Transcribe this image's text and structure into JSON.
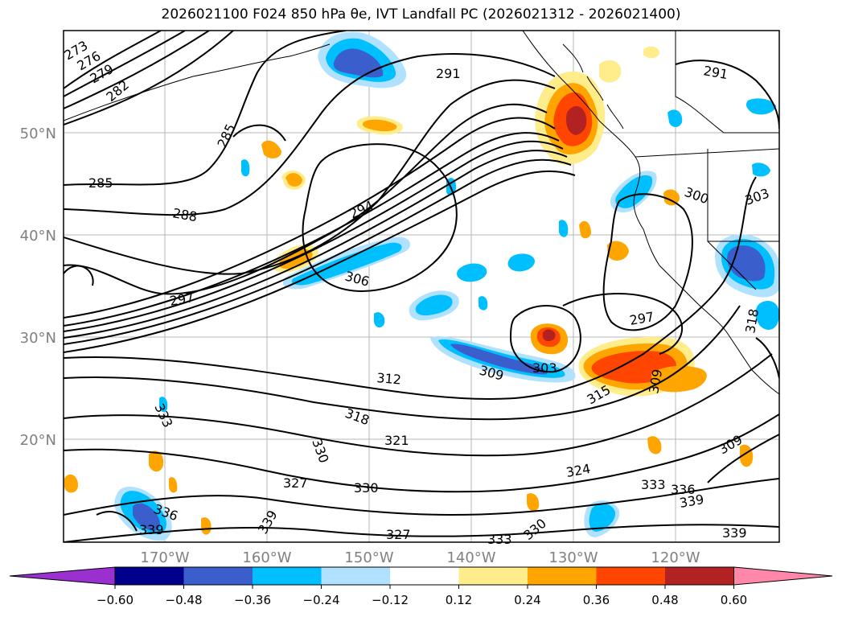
{
  "title": "2026021100 F024 850 hPa θe, IVT Landfall PC (2026021312 - 2026021400)",
  "map": {
    "lat_ticks": [
      "50°N",
      "40°N",
      "30°N",
      "20°N"
    ],
    "lon_ticks": [
      "170°W",
      "160°W",
      "150°W",
      "140°W",
      "130°W",
      "120°W"
    ]
  },
  "contour_labels": [
    {
      "text": "273"
    },
    {
      "text": "276"
    },
    {
      "text": "279"
    },
    {
      "text": "282"
    },
    {
      "text": "285"
    },
    {
      "text": "285"
    },
    {
      "text": "288"
    },
    {
      "text": "291"
    },
    {
      "text": "291"
    },
    {
      "text": "294"
    },
    {
      "text": "297"
    },
    {
      "text": "297"
    },
    {
      "text": "300"
    },
    {
      "text": "303"
    },
    {
      "text": "303"
    },
    {
      "text": "306"
    },
    {
      "text": "309"
    },
    {
      "text": "309"
    },
    {
      "text": "309"
    },
    {
      "text": "312"
    },
    {
      "text": "315"
    },
    {
      "text": "318"
    },
    {
      "text": "318"
    },
    {
      "text": "321"
    },
    {
      "text": "324"
    },
    {
      "text": "327"
    },
    {
      "text": "327"
    },
    {
      "text": "330"
    },
    {
      "text": "330"
    },
    {
      "text": "330"
    },
    {
      "text": "333"
    },
    {
      "text": "333"
    },
    {
      "text": "333"
    },
    {
      "text": "336"
    },
    {
      "text": "336"
    },
    {
      "text": "339"
    },
    {
      "text": "339"
    },
    {
      "text": "339"
    },
    {
      "text": "339"
    }
  ],
  "colorbar": {
    "ticks": [
      "−0.60",
      "−0.48",
      "−0.36",
      "−0.24",
      "−0.12",
      "0.12",
      "0.24",
      "0.36",
      "0.48",
      "0.60"
    ],
    "under_color": "#9b30d0",
    "over_color": "#ff88aa",
    "colors": [
      "#00008b",
      "#3a5fcd",
      "#00bfff",
      "#b0e2ff",
      "#ffffff",
      "#ffec8b",
      "#ffa500",
      "#ff4500",
      "#b22222"
    ]
  }
}
